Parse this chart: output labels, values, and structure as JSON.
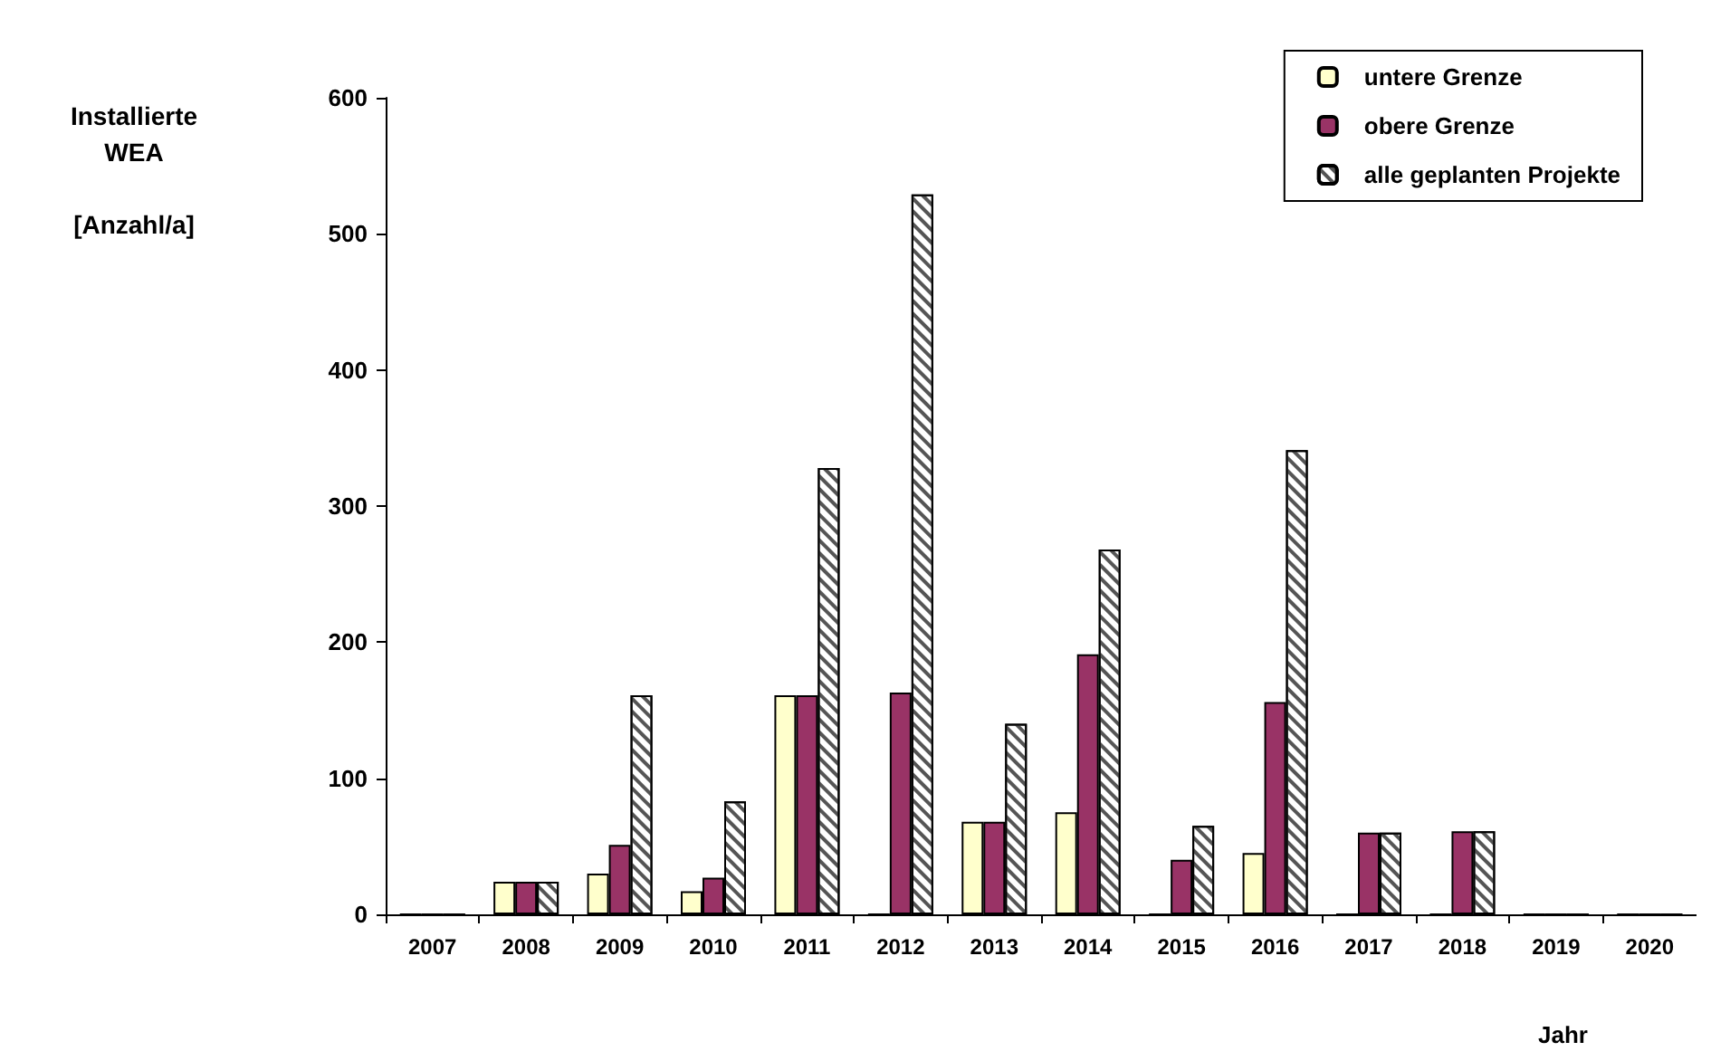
{
  "chart_data": {
    "type": "bar",
    "ylabel": "Installierte\nWEA\n\n[Anzahl/a]",
    "xlabel": "Jahr",
    "categories": [
      "2007",
      "2008",
      "2009",
      "2010",
      "2011",
      "2012",
      "2013",
      "2014",
      "2015",
      "2016",
      "2017",
      "2018",
      "2019",
      "2020"
    ],
    "ylim": [
      0,
      600
    ],
    "yticks": [
      0,
      100,
      200,
      300,
      400,
      500,
      600
    ],
    "grid": false,
    "legend": "top right",
    "series": [
      {
        "name": "untere Grenze",
        "color": "#ffffcc",
        "values": [
          0,
          24,
          30,
          17,
          161,
          0,
          68,
          75,
          0,
          45,
          0,
          0,
          0,
          0
        ]
      },
      {
        "name": "obere Grenze",
        "color": "#993366",
        "values": [
          0,
          24,
          51,
          27,
          161,
          163,
          68,
          191,
          40,
          156,
          60,
          61,
          0,
          0
        ]
      },
      {
        "name": "alle geplanten Projekte",
        "color": "#ffffff",
        "values": [
          0,
          24,
          161,
          83,
          328,
          529,
          140,
          268,
          65,
          341,
          60,
          61,
          0,
          0
        ]
      }
    ]
  }
}
